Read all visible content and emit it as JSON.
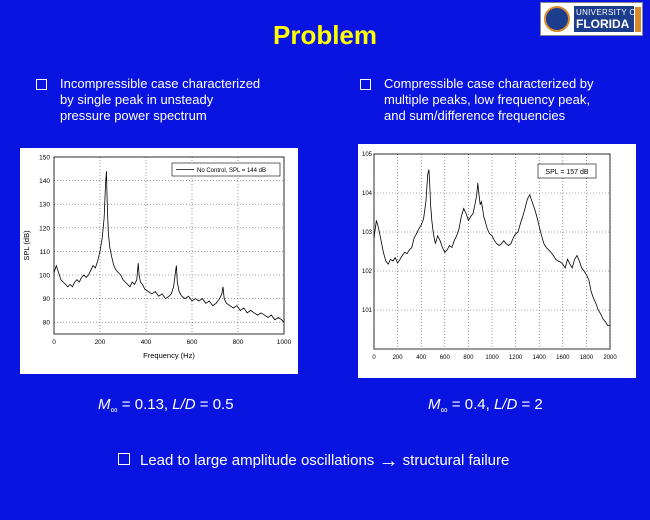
{
  "slide": {
    "title": "Problem",
    "logo_text": [
      "UNIVERSITY OF",
      "FLORIDA"
    ],
    "left_bullet": [
      "Incompressible case characterized",
      "by single peak in unsteady",
      "pressure power spectrum"
    ],
    "right_bullet": [
      "Compressible case characterized by",
      "multiple peaks, low frequency peak,",
      "and sum/difference frequencies"
    ],
    "left_caption": {
      "m": "M",
      "sub": "∞",
      "rest": " = 0.13, ",
      "ld": "L/D",
      "val": " = 0.5"
    },
    "right_caption": {
      "m": "M",
      "sub": "∞",
      "rest": " = 0.4, ",
      "ld": "L/D",
      "val": " = 2"
    },
    "bottom_bullet": {
      "text": "Lead to large amplitude oscillations",
      "arrow": "→",
      "text2": "structural failure"
    }
  },
  "chart_data": [
    {
      "type": "line",
      "xlabel": "Frequency (Hz)",
      "ylabel": "SPL (dB)",
      "xlim": [
        0,
        1000
      ],
      "ylim": [
        75,
        150
      ],
      "xticks": [
        0,
        200,
        400,
        600,
        800,
        1000
      ],
      "yticks": [
        80,
        90,
        100,
        110,
        120,
        130,
        140,
        150
      ],
      "grid": true,
      "legend": "top-right",
      "series": [
        {
          "name": "No Control, SPL = 144 dB",
          "x": [
            0,
            10,
            20,
            30,
            40,
            50,
            60,
            70,
            80,
            90,
            100,
            110,
            120,
            130,
            140,
            150,
            160,
            170,
            180,
            190,
            200,
            210,
            218,
            224,
            228,
            232,
            236,
            242,
            250,
            260,
            270,
            280,
            290,
            300,
            310,
            320,
            330,
            340,
            350,
            360,
            366,
            370,
            376,
            384,
            395,
            410,
            425,
            440,
            455,
            470,
            485,
            500,
            510,
            520,
            528,
            532,
            536,
            544,
            555,
            570,
            585,
            600,
            615,
            630,
            645,
            660,
            675,
            690,
            705,
            720,
            730,
            735,
            740,
            750,
            765,
            780,
            795,
            810,
            825,
            840,
            855,
            870,
            885,
            900,
            915,
            930,
            945,
            960,
            975,
            990,
            1000
          ],
          "y": [
            101,
            104,
            101,
            98,
            97,
            96,
            95,
            96,
            95,
            97,
            98,
            97,
            99,
            100,
            99,
            100,
            102,
            104,
            103,
            106,
            110,
            116,
            124,
            138,
            144,
            128,
            118,
            112,
            108,
            104,
            102,
            101,
            100,
            98,
            97,
            96,
            95,
            97,
            96,
            98,
            105,
            100,
            97,
            96,
            94,
            93,
            92,
            93,
            91,
            92,
            90,
            91,
            92,
            95,
            101,
            104,
            97,
            93,
            91,
            90,
            91,
            89,
            90,
            89,
            90,
            88,
            89,
            87,
            88,
            90,
            92,
            95,
            90,
            88,
            87,
            86,
            87,
            85,
            86,
            84,
            85,
            84,
            83,
            84,
            83,
            82,
            83,
            81,
            82,
            81,
            80
          ]
        }
      ]
    },
    {
      "type": "line",
      "xlabel": "",
      "ylabel": "",
      "xlim": [
        0,
        2000
      ],
      "ylim": [
        1,
        100000
      ],
      "log_y": true,
      "xticks": [
        0,
        200,
        400,
        600,
        800,
        1000,
        1200,
        1400,
        1600,
        1800,
        2000
      ],
      "ytick_labels": [
        "10^1",
        "10^2",
        "10^3",
        "10^4",
        "10^5"
      ],
      "grid": true,
      "legend": "top-right",
      "series": [
        {
          "name": "SPL = 157 dB",
          "x": [
            0,
            20,
            40,
            60,
            80,
            100,
            120,
            140,
            160,
            180,
            200,
            220,
            240,
            260,
            280,
            300,
            320,
            340,
            360,
            380,
            400,
            420,
            440,
            455,
            465,
            475,
            480,
            490,
            500,
            510,
            520,
            540,
            560,
            580,
            600,
            620,
            640,
            660,
            680,
            700,
            720,
            740,
            760,
            780,
            800,
            820,
            840,
            860,
            870,
            880,
            890,
            900,
            910,
            920,
            930,
            940,
            960,
            980,
            1000,
            1020,
            1040,
            1060,
            1080,
            1100,
            1120,
            1140,
            1160,
            1180,
            1200,
            1220,
            1240,
            1260,
            1280,
            1300,
            1320,
            1340,
            1360,
            1380,
            1400,
            1420,
            1440,
            1460,
            1480,
            1500,
            1520,
            1540,
            1560,
            1580,
            1600,
            1620,
            1640,
            1660,
            1680,
            1700,
            1720,
            1740,
            1760,
            1780,
            1800,
            1820,
            1840,
            1860,
            1880,
            1900,
            1920,
            1940,
            1960,
            1980,
            2000
          ],
          "y": [
            700,
            2000,
            1200,
            600,
            300,
            180,
            150,
            200,
            180,
            220,
            160,
            200,
            250,
            300,
            280,
            350,
            400,
            700,
            900,
            1200,
            1500,
            2200,
            6000,
            30000,
            40000,
            12000,
            5000,
            2000,
            1100,
            700,
            500,
            800,
            600,
            400,
            300,
            350,
            450,
            400,
            600,
            800,
            1200,
            2500,
            4000,
            3000,
            2000,
            2500,
            3000,
            6000,
            9000,
            18000,
            9000,
            5000,
            6000,
            4000,
            2500,
            2000,
            1200,
            900,
            800,
            600,
            500,
            450,
            500,
            600,
            500,
            450,
            500,
            700,
            900,
            1000,
            1600,
            2500,
            4000,
            7000,
            9000,
            6000,
            4000,
            2500,
            1400,
            800,
            500,
            400,
            350,
            300,
            250,
            200,
            180,
            170,
            150,
            120,
            200,
            150,
            120,
            200,
            250,
            180,
            120,
            100,
            80,
            60,
            30,
            20,
            15,
            10,
            8,
            6,
            5,
            4,
            4
          ]
        }
      ]
    }
  ]
}
